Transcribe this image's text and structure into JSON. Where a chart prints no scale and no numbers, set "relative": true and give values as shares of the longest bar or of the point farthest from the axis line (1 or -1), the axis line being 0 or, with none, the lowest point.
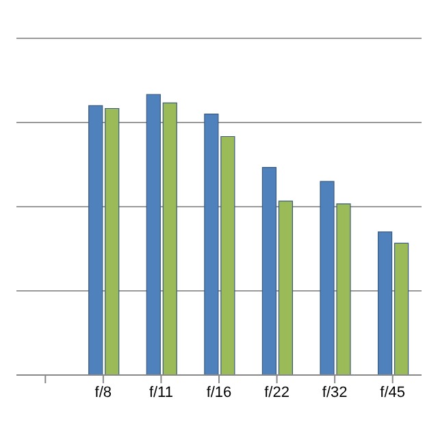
{
  "chart_data": {
    "type": "bar",
    "relative": true,
    "grid": "y",
    "categories": [
      null,
      "f/8",
      "f/11",
      "f/16",
      "f/22",
      "f/32",
      "f/45"
    ],
    "series": [
      {
        "color": "#4f81bd",
        "values": [
          null,
          0.96,
          1,
          0.93,
          0.74,
          0.69,
          0.51
        ]
      },
      {
        "color": "#9bbb59",
        "values": [
          null,
          0.95,
          0.97,
          0.85,
          0.62,
          0.61,
          0.47
        ]
      }
    ]
  }
}
